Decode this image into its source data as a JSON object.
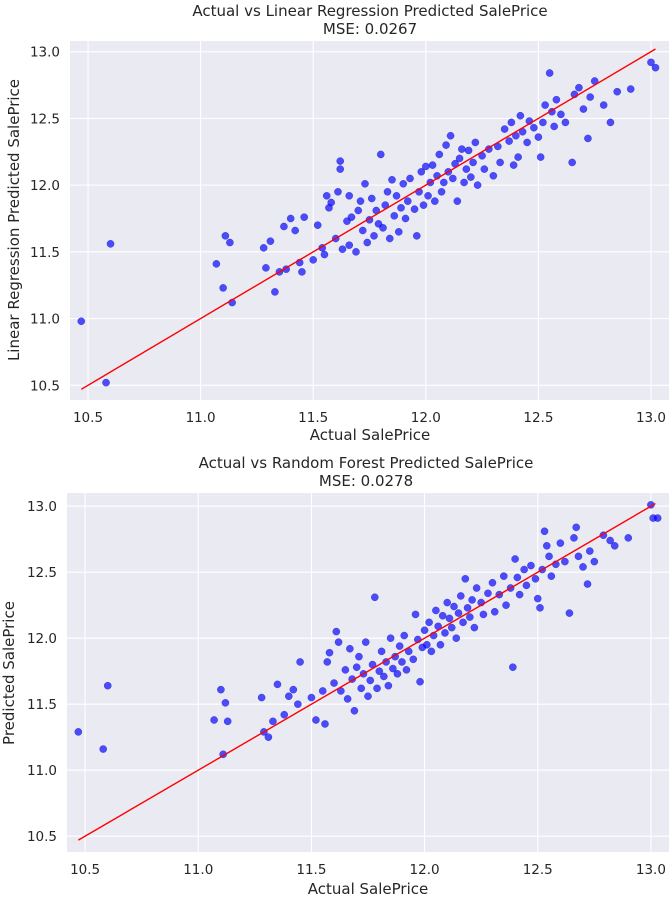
{
  "colors": {
    "background": "#eaeaf2",
    "grid": "#ffffff",
    "points": "#0000ff",
    "fit_line": "#ff0000"
  },
  "chart_data": [
    {
      "type": "scatter",
      "title": "Actual vs Linear Regression Predicted SalePrice",
      "subtitle": "MSE: 0.0267",
      "xlabel": "Actual SalePrice",
      "ylabel": "Linear Regression Predicted SalePrice",
      "xlim": [
        10.42,
        13.08
      ],
      "ylim": [
        10.39,
        13.08
      ],
      "xticks": [
        "10.5",
        "11.0",
        "11.5",
        "12.0",
        "12.5",
        "13.0"
      ],
      "yticks": [
        "10.5",
        "11.0",
        "11.5",
        "12.0",
        "12.5",
        "13.0"
      ],
      "grid": true,
      "fit_line": [
        [
          10.47,
          10.47
        ],
        [
          13.02,
          13.02
        ]
      ],
      "points": [
        [
          10.47,
          10.98
        ],
        [
          10.58,
          10.52
        ],
        [
          10.6,
          11.56
        ],
        [
          11.07,
          11.41
        ],
        [
          11.1,
          11.23
        ],
        [
          11.11,
          11.62
        ],
        [
          11.13,
          11.57
        ],
        [
          11.14,
          11.12
        ],
        [
          11.28,
          11.53
        ],
        [
          11.29,
          11.38
        ],
        [
          11.31,
          11.58
        ],
        [
          11.33,
          11.2
        ],
        [
          11.35,
          11.35
        ],
        [
          11.37,
          11.69
        ],
        [
          11.38,
          11.37
        ],
        [
          11.4,
          11.75
        ],
        [
          11.42,
          11.66
        ],
        [
          11.44,
          11.42
        ],
        [
          11.45,
          11.35
        ],
        [
          11.46,
          11.76
        ],
        [
          11.5,
          11.44
        ],
        [
          11.52,
          11.7
        ],
        [
          11.54,
          11.53
        ],
        [
          11.55,
          11.48
        ],
        [
          11.56,
          11.92
        ],
        [
          11.57,
          11.83
        ],
        [
          11.58,
          11.87
        ],
        [
          11.6,
          11.6
        ],
        [
          11.61,
          11.95
        ],
        [
          11.62,
          12.18
        ],
        [
          11.62,
          12.12
        ],
        [
          11.63,
          11.52
        ],
        [
          11.65,
          11.73
        ],
        [
          11.66,
          11.55
        ],
        [
          11.66,
          11.92
        ],
        [
          11.67,
          11.76
        ],
        [
          11.69,
          11.5
        ],
        [
          11.7,
          11.81
        ],
        [
          11.71,
          11.88
        ],
        [
          11.72,
          11.66
        ],
        [
          11.73,
          12.01
        ],
        [
          11.74,
          11.57
        ],
        [
          11.75,
          11.74
        ],
        [
          11.76,
          11.9
        ],
        [
          11.77,
          11.62
        ],
        [
          11.78,
          11.81
        ],
        [
          11.79,
          11.71
        ],
        [
          11.8,
          12.23
        ],
        [
          11.81,
          11.68
        ],
        [
          11.82,
          11.85
        ],
        [
          11.83,
          11.95
        ],
        [
          11.84,
          11.6
        ],
        [
          11.85,
          12.04
        ],
        [
          11.86,
          11.77
        ],
        [
          11.87,
          11.92
        ],
        [
          11.88,
          11.65
        ],
        [
          11.89,
          11.83
        ],
        [
          11.9,
          12.01
        ],
        [
          11.91,
          11.75
        ],
        [
          11.92,
          11.88
        ],
        [
          11.93,
          12.05
        ],
        [
          11.95,
          11.82
        ],
        [
          11.96,
          11.62
        ],
        [
          11.97,
          11.95
        ],
        [
          11.98,
          12.1
        ],
        [
          11.99,
          11.85
        ],
        [
          12.0,
          12.14
        ],
        [
          12.01,
          11.92
        ],
        [
          12.02,
          12.02
        ],
        [
          12.03,
          12.15
        ],
        [
          12.04,
          11.88
        ],
        [
          12.05,
          12.07
        ],
        [
          12.06,
          12.23
        ],
        [
          12.07,
          11.95
        ],
        [
          12.08,
          12.02
        ],
        [
          12.09,
          12.3
        ],
        [
          12.1,
          12.1
        ],
        [
          12.11,
          12.37
        ],
        [
          12.12,
          12.05
        ],
        [
          12.13,
          12.16
        ],
        [
          12.14,
          11.88
        ],
        [
          12.15,
          12.2
        ],
        [
          12.16,
          12.27
        ],
        [
          12.17,
          12.02
        ],
        [
          12.18,
          12.12
        ],
        [
          12.19,
          12.26
        ],
        [
          12.2,
          12.06
        ],
        [
          12.21,
          12.17
        ],
        [
          12.22,
          12.32
        ],
        [
          12.23,
          12.0
        ],
        [
          12.25,
          12.22
        ],
        [
          12.26,
          12.12
        ],
        [
          12.28,
          12.27
        ],
        [
          12.3,
          12.07
        ],
        [
          12.32,
          12.29
        ],
        [
          12.33,
          12.17
        ],
        [
          12.35,
          12.42
        ],
        [
          12.37,
          12.33
        ],
        [
          12.38,
          12.47
        ],
        [
          12.39,
          12.15
        ],
        [
          12.4,
          12.37
        ],
        [
          12.41,
          12.21
        ],
        [
          12.42,
          12.52
        ],
        [
          12.43,
          12.4
        ],
        [
          12.45,
          12.32
        ],
        [
          12.46,
          12.48
        ],
        [
          12.48,
          12.43
        ],
        [
          12.5,
          12.36
        ],
        [
          12.51,
          12.21
        ],
        [
          12.52,
          12.47
        ],
        [
          12.53,
          12.6
        ],
        [
          12.55,
          12.84
        ],
        [
          12.56,
          12.55
        ],
        [
          12.57,
          12.44
        ],
        [
          12.58,
          12.64
        ],
        [
          12.6,
          12.53
        ],
        [
          12.62,
          12.47
        ],
        [
          12.65,
          12.17
        ],
        [
          12.66,
          12.68
        ],
        [
          12.68,
          12.73
        ],
        [
          12.7,
          12.57
        ],
        [
          12.72,
          12.35
        ],
        [
          12.73,
          12.66
        ],
        [
          12.75,
          12.78
        ],
        [
          12.79,
          12.6
        ],
        [
          12.82,
          12.47
        ],
        [
          12.85,
          12.7
        ],
        [
          12.91,
          12.72
        ],
        [
          13.0,
          12.92
        ],
        [
          13.02,
          12.88
        ]
      ]
    },
    {
      "type": "scatter",
      "title": "Actual vs Random Forest Predicted SalePrice",
      "subtitle": "MSE: 0.0278",
      "xlabel": "Actual SalePrice",
      "ylabel": "Predicted SalePrice",
      "xlim": [
        10.42,
        13.08
      ],
      "ylim": [
        10.38,
        13.1
      ],
      "xticks": [
        "10.5",
        "11.0",
        "11.5",
        "12.0",
        "12.5",
        "13.0"
      ],
      "yticks": [
        "10.5",
        "11.0",
        "11.5",
        "12.0",
        "12.5",
        "13.0"
      ],
      "grid": true,
      "fit_line": [
        [
          10.47,
          10.47
        ],
        [
          13.02,
          13.02
        ]
      ],
      "points": [
        [
          10.47,
          11.29
        ],
        [
          10.58,
          11.16
        ],
        [
          10.6,
          11.64
        ],
        [
          11.07,
          11.38
        ],
        [
          11.1,
          11.61
        ],
        [
          11.11,
          11.12
        ],
        [
          11.12,
          11.51
        ],
        [
          11.13,
          11.37
        ],
        [
          11.28,
          11.55
        ],
        [
          11.29,
          11.29
        ],
        [
          11.31,
          11.25
        ],
        [
          11.33,
          11.37
        ],
        [
          11.35,
          11.65
        ],
        [
          11.38,
          11.42
        ],
        [
          11.4,
          11.56
        ],
        [
          11.42,
          11.61
        ],
        [
          11.44,
          11.5
        ],
        [
          11.45,
          11.82
        ],
        [
          11.5,
          11.55
        ],
        [
          11.52,
          11.38
        ],
        [
          11.55,
          11.6
        ],
        [
          11.56,
          11.35
        ],
        [
          11.57,
          11.82
        ],
        [
          11.58,
          11.89
        ],
        [
          11.6,
          11.66
        ],
        [
          11.61,
          12.05
        ],
        [
          11.62,
          11.97
        ],
        [
          11.63,
          11.6
        ],
        [
          11.65,
          11.76
        ],
        [
          11.66,
          11.54
        ],
        [
          11.67,
          11.92
        ],
        [
          11.68,
          11.69
        ],
        [
          11.69,
          11.45
        ],
        [
          11.7,
          11.78
        ],
        [
          11.71,
          11.86
        ],
        [
          11.72,
          11.62
        ],
        [
          11.73,
          11.73
        ],
        [
          11.74,
          11.97
        ],
        [
          11.75,
          11.56
        ],
        [
          11.76,
          11.68
        ],
        [
          11.77,
          11.8
        ],
        [
          11.78,
          12.31
        ],
        [
          11.79,
          11.62
        ],
        [
          11.8,
          11.75
        ],
        [
          11.81,
          11.9
        ],
        [
          11.82,
          11.71
        ],
        [
          11.83,
          11.82
        ],
        [
          11.84,
          11.64
        ],
        [
          11.85,
          12.0
        ],
        [
          11.86,
          11.77
        ],
        [
          11.87,
          11.86
        ],
        [
          11.88,
          11.73
        ],
        [
          11.89,
          11.94
        ],
        [
          11.9,
          11.82
        ],
        [
          11.91,
          12.02
        ],
        [
          11.92,
          11.76
        ],
        [
          11.93,
          11.9
        ],
        [
          11.95,
          11.84
        ],
        [
          11.96,
          12.18
        ],
        [
          11.97,
          11.99
        ],
        [
          11.98,
          11.67
        ],
        [
          11.99,
          11.93
        ],
        [
          12.0,
          12.06
        ],
        [
          12.01,
          11.95
        ],
        [
          12.02,
          12.12
        ],
        [
          12.03,
          11.9
        ],
        [
          12.04,
          12.02
        ],
        [
          12.05,
          12.21
        ],
        [
          12.06,
          12.09
        ],
        [
          12.07,
          11.95
        ],
        [
          12.08,
          12.17
        ],
        [
          12.09,
          12.04
        ],
        [
          12.1,
          12.27
        ],
        [
          12.11,
          12.15
        ],
        [
          12.12,
          12.08
        ],
        [
          12.13,
          12.24
        ],
        [
          12.14,
          12.0
        ],
        [
          12.15,
          12.19
        ],
        [
          12.16,
          12.32
        ],
        [
          12.17,
          12.12
        ],
        [
          12.18,
          12.45
        ],
        [
          12.19,
          12.23
        ],
        [
          12.2,
          12.16
        ],
        [
          12.21,
          12.29
        ],
        [
          12.22,
          12.08
        ],
        [
          12.23,
          12.38
        ],
        [
          12.25,
          12.27
        ],
        [
          12.26,
          12.18
        ],
        [
          12.28,
          12.34
        ],
        [
          12.3,
          12.42
        ],
        [
          12.31,
          12.2
        ],
        [
          12.33,
          12.33
        ],
        [
          12.35,
          12.47
        ],
        [
          12.36,
          12.25
        ],
        [
          12.38,
          12.38
        ],
        [
          12.39,
          11.78
        ],
        [
          12.4,
          12.6
        ],
        [
          12.41,
          12.46
        ],
        [
          12.42,
          12.33
        ],
        [
          12.44,
          12.52
        ],
        [
          12.45,
          12.4
        ],
        [
          12.47,
          12.55
        ],
        [
          12.49,
          12.45
        ],
        [
          12.5,
          12.3
        ],
        [
          12.51,
          12.23
        ],
        [
          12.52,
          12.52
        ],
        [
          12.53,
          12.81
        ],
        [
          12.54,
          12.7
        ],
        [
          12.55,
          12.62
        ],
        [
          12.56,
          12.47
        ],
        [
          12.58,
          12.56
        ],
        [
          12.6,
          12.72
        ],
        [
          12.62,
          12.58
        ],
        [
          12.64,
          12.19
        ],
        [
          12.66,
          12.76
        ],
        [
          12.67,
          12.84
        ],
        [
          12.68,
          12.62
        ],
        [
          12.7,
          12.54
        ],
        [
          12.72,
          12.41
        ],
        [
          12.73,
          12.66
        ],
        [
          12.75,
          12.58
        ],
        [
          12.79,
          12.78
        ],
        [
          12.82,
          12.74
        ],
        [
          12.84,
          12.7
        ],
        [
          12.9,
          12.76
        ],
        [
          13.0,
          13.01
        ],
        [
          13.01,
          12.91
        ],
        [
          13.03,
          12.91
        ]
      ]
    }
  ]
}
